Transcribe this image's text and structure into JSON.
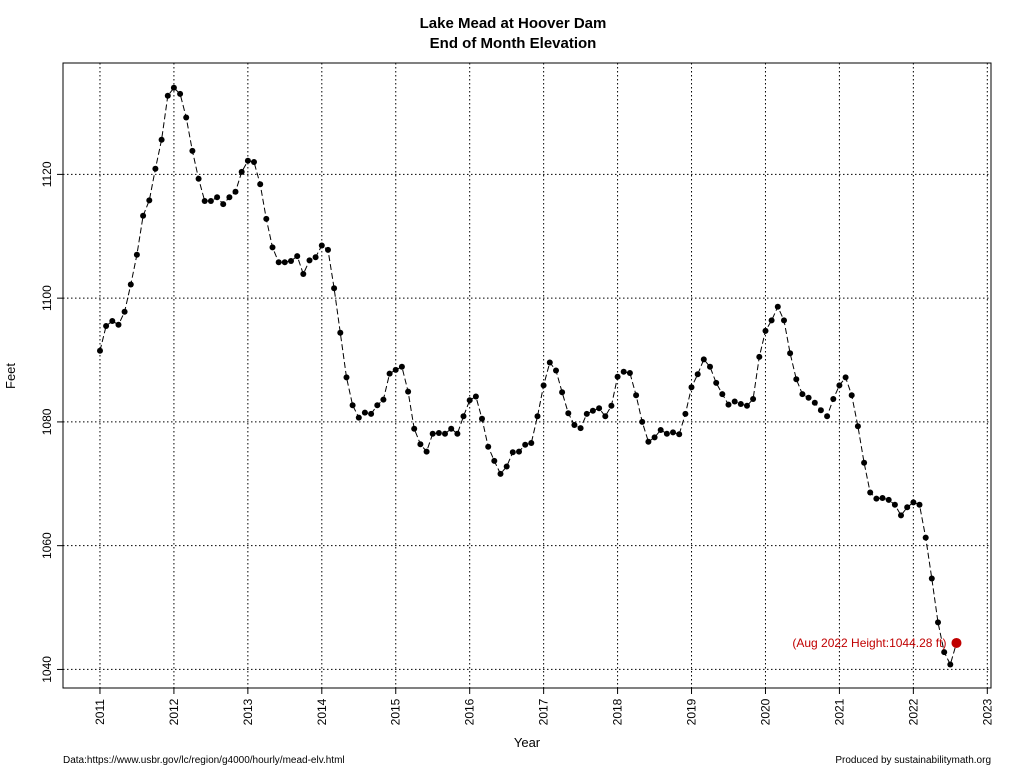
{
  "chart_data": {
    "type": "line",
    "title": "Lake Mead at Hoover Dam",
    "subtitle": "End of Month Elevation",
    "xlabel": "Year",
    "ylabel": "Feet",
    "xlim": [
      2010.5,
      2023.05
    ],
    "ylim": [
      1037,
      1138
    ],
    "x_ticks": [
      "2011",
      "2012",
      "2013",
      "2014",
      "2015",
      "2016",
      "2017",
      "2018",
      "2019",
      "2020",
      "2021",
      "2022",
      "2023"
    ],
    "y_ticks": [
      "1040",
      "1060",
      "1080",
      "1100",
      "1120"
    ],
    "grid": true,
    "start_year": 2011,
    "series": [
      {
        "values": [
          1091.5,
          1095.5,
          1096.3,
          1095.7,
          1097.8,
          1102.2,
          1107.0,
          1113.3,
          1115.8,
          1120.9,
          1125.6,
          1132.7,
          1134.0,
          1133.0,
          1129.2,
          1123.8,
          1119.3,
          1115.7,
          1115.7,
          1116.3,
          1115.2,
          1116.3,
          1117.2,
          1120.4,
          1122.2,
          1122.0,
          1118.4,
          1112.8,
          1108.2,
          1105.8,
          1105.8,
          1106.0,
          1106.8,
          1103.9,
          1106.1,
          1106.6,
          1108.5,
          1107.8,
          1101.6,
          1094.4,
          1087.2,
          1082.7,
          1080.7,
          1081.5,
          1081.3,
          1082.7,
          1083.6,
          1087.8,
          1088.4,
          1088.9,
          1084.9,
          1078.9,
          1076.4,
          1075.2,
          1078.1,
          1078.2,
          1078.1,
          1078.9,
          1078.1,
          1080.9,
          1083.5,
          1084.1,
          1080.5,
          1076.0,
          1073.7,
          1071.6,
          1072.8,
          1075.1,
          1075.2,
          1076.3,
          1076.6,
          1080.9,
          1085.9,
          1089.6,
          1088.3,
          1084.8,
          1081.4,
          1079.5,
          1079.0,
          1081.3,
          1081.8,
          1082.2,
          1080.9,
          1082.6,
          1087.3,
          1088.1,
          1087.9,
          1084.3,
          1080.0,
          1076.8,
          1077.5,
          1078.7,
          1078.1,
          1078.3,
          1078.0,
          1081.3,
          1085.6,
          1087.7,
          1090.1,
          1088.9,
          1086.3,
          1084.5,
          1082.8,
          1083.3,
          1082.9,
          1082.6,
          1083.7,
          1090.5,
          1094.7,
          1096.4,
          1098.6,
          1096.4,
          1091.1,
          1086.9,
          1084.5,
          1083.9,
          1083.1,
          1081.9,
          1080.9,
          1083.7,
          1085.9,
          1087.2,
          1084.3,
          1079.3,
          1073.4,
          1068.6,
          1067.6,
          1067.7,
          1067.4,
          1066.6,
          1064.9,
          1066.2,
          1067.0,
          1066.6,
          1061.3,
          1054.7,
          1047.6,
          1042.8,
          1040.8,
          1044.28
        ]
      }
    ],
    "highlight": {
      "year": 2022.583,
      "value": 1044.28,
      "label": "(Aug 2022 Height:1044.28 ft)",
      "color": "#c00000"
    }
  },
  "footer": {
    "source": "Data:https://www.usbr.gov/lc/region/g4000/hourly/mead-elv.html",
    "credit": "Produced by sustainabilitymath.org"
  }
}
